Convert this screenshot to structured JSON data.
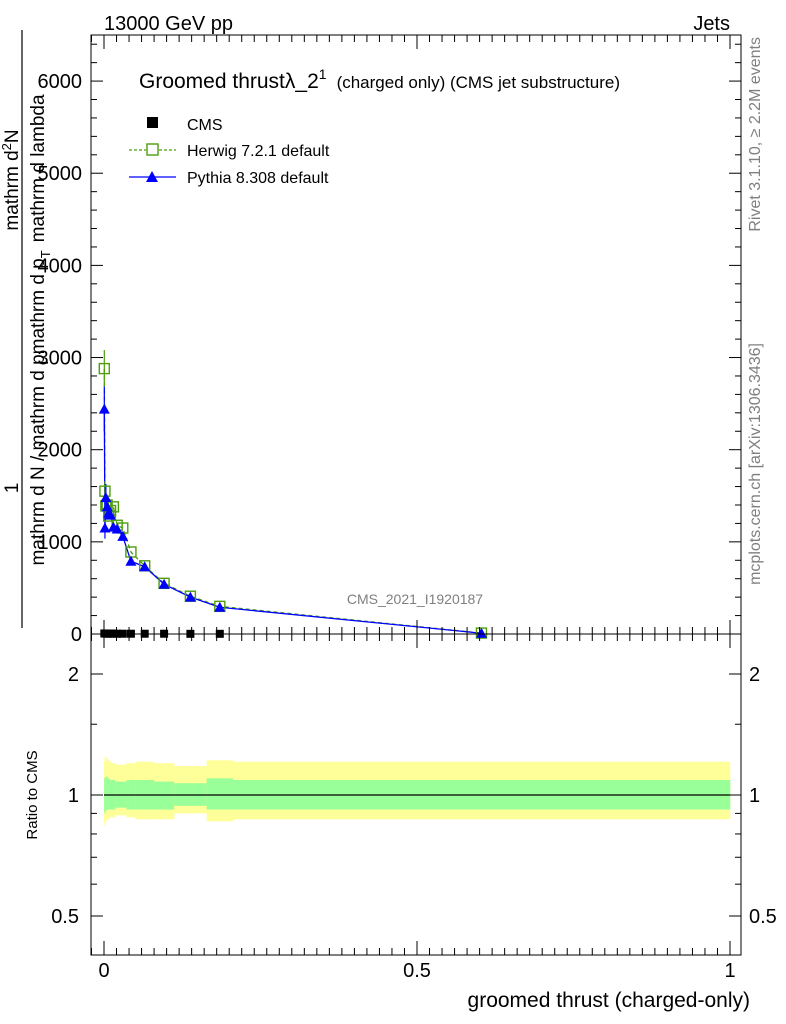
{
  "header": {
    "left": "13000 GeV pp",
    "right": "Jets"
  },
  "side_labels": {
    "rivet": "Rivet 3.1.10, ≥ 2.2M events",
    "mcplots": "mcplots.cern.ch [arXiv:1306.3436]"
  },
  "main": {
    "title": "Groomed thrustλ_2",
    "title_sup": "1",
    "title_suffix": "(charged only) (CMS jet substructure)",
    "ylabel_num": "1",
    "ylabel_den": "mathrm d N / mathrm d p",
    "ylabel_num_main": "mathrm d",
    "ylabel_num_sup": "2",
    "ylabel_num_rest": "N",
    "ylabel_den_rest": "mathrm d p",
    "ylabel_den_sub": "T",
    "ylabel_den_tail": "mathrm d lambda",
    "analysis_id": "CMS_2021_I1920187"
  },
  "ratio": {
    "ylabel": "Ratio to CMS",
    "xlabel": "groomed thrust (charged-only)"
  },
  "colors": {
    "cms": "#000000",
    "herwig": "#4c9e0c",
    "pythia": "#0000ff",
    "band_outer": "#ffff99",
    "band_inner": "#99ff99"
  },
  "chart_data": {
    "type": "line",
    "xlim": [
      -0.02,
      1.0
    ],
    "ylim": [
      0,
      6500
    ],
    "ratio_ylim": [
      0.43,
      2.3
    ],
    "x_ticks": [
      "0",
      "0.5",
      "1"
    ],
    "y_ticks": [
      "0",
      "1000",
      "2000",
      "3000",
      "4000",
      "5000",
      "6000"
    ],
    "ratio_ticks": [
      "0.5",
      "1",
      "2"
    ],
    "legend_position": "top-left",
    "series": [
      {
        "name": "CMS",
        "style": "marker-square",
        "x": [
          0.0005,
          0.0015,
          0.003,
          0.005,
          0.0075,
          0.0105,
          0.015,
          0.021,
          0.03,
          0.043,
          0.065,
          0.096,
          0.138,
          0.185,
          0.603
        ],
        "y": [
          6,
          5,
          5,
          4,
          4,
          4,
          4,
          3,
          3,
          3,
          3,
          3,
          2,
          2,
          1
        ]
      },
      {
        "name": "Herwig 7.2.1 default",
        "style": "dashed-open-square",
        "x": [
          0.0005,
          0.0015,
          0.003,
          0.005,
          0.0075,
          0.0105,
          0.015,
          0.021,
          0.03,
          0.043,
          0.065,
          0.096,
          0.138,
          0.185,
          0.603
        ],
        "y": [
          2880,
          1550,
          1390,
          1400,
          1280,
          1340,
          1380,
          1180,
          1150,
          890,
          740,
          550,
          410,
          300,
          10
        ]
      },
      {
        "name": "Pythia 8.308 default",
        "style": "solid-triangle",
        "x": [
          0.0005,
          0.0015,
          0.003,
          0.005,
          0.0075,
          0.0105,
          0.015,
          0.021,
          0.03,
          0.043,
          0.065,
          0.096,
          0.138,
          0.185,
          0.603
        ],
        "y": [
          2440,
          1150,
          1480,
          1380,
          1310,
          1290,
          1160,
          1140,
          1060,
          790,
          730,
          540,
          400,
          290,
          8
        ]
      }
    ],
    "ratio_band": {
      "x_edges": [
        0.0,
        0.001,
        0.002,
        0.004,
        0.006,
        0.009,
        0.012,
        0.018,
        0.024,
        0.036,
        0.05,
        0.08,
        0.112,
        0.164,
        0.206,
        1.0
      ],
      "outer": [
        [
          0.84,
          1.21
        ],
        [
          0.86,
          1.25
        ],
        [
          0.86,
          1.24
        ],
        [
          0.87,
          1.23
        ],
        [
          0.87,
          1.22
        ],
        [
          0.88,
          1.21
        ],
        [
          0.88,
          1.2
        ],
        [
          0.89,
          1.19
        ],
        [
          0.89,
          1.19
        ],
        [
          0.88,
          1.2
        ],
        [
          0.87,
          1.21
        ],
        [
          0.87,
          1.2
        ],
        [
          0.9,
          1.18
        ],
        [
          0.86,
          1.22
        ],
        [
          0.87,
          1.21
        ]
      ],
      "inner": [
        [
          0.9,
          1.1
        ],
        [
          0.91,
          1.1
        ],
        [
          0.91,
          1.11
        ],
        [
          0.92,
          1.11
        ],
        [
          0.92,
          1.1
        ],
        [
          0.92,
          1.09
        ],
        [
          0.92,
          1.09
        ],
        [
          0.93,
          1.08
        ],
        [
          0.93,
          1.08
        ],
        [
          0.92,
          1.09
        ],
        [
          0.92,
          1.09
        ],
        [
          0.92,
          1.08
        ],
        [
          0.94,
          1.07
        ],
        [
          0.92,
          1.1
        ],
        [
          0.92,
          1.09
        ]
      ]
    }
  }
}
